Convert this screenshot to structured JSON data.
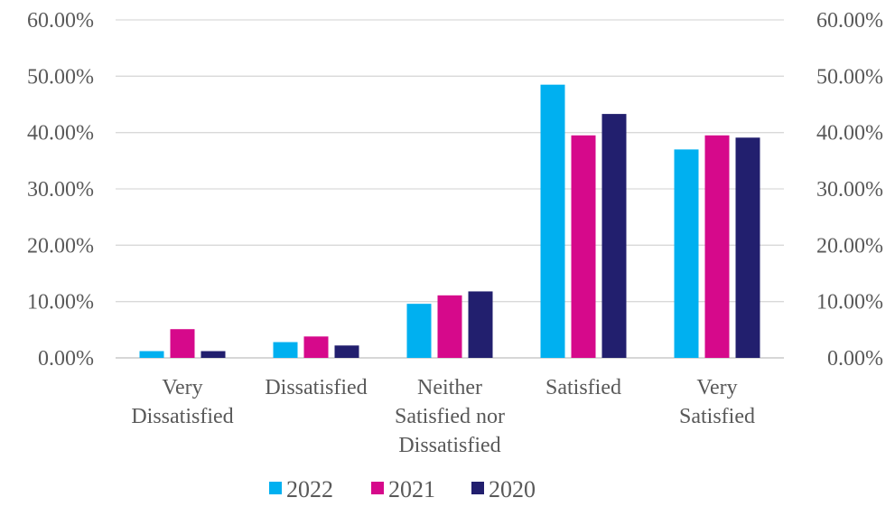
{
  "chart_data": {
    "type": "bar",
    "categories": [
      [
        "Very",
        "Dissatisfied"
      ],
      [
        "Dissatisfied"
      ],
      [
        "Neither",
        "Satisfied nor",
        "Dissatisfied"
      ],
      [
        "Satisfied"
      ],
      [
        "Very",
        "Satisfied"
      ]
    ],
    "series": [
      {
        "name": "2022",
        "color": "#00B0F0",
        "values": [
          1.2,
          2.8,
          9.6,
          48.5,
          37.0
        ]
      },
      {
        "name": "2021",
        "color": "#D6098B",
        "values": [
          5.1,
          3.8,
          11.1,
          39.5,
          39.5
        ]
      },
      {
        "name": "2020",
        "color": "#221F6E",
        "values": [
          1.2,
          2.2,
          11.8,
          43.3,
          39.1
        ]
      }
    ],
    "ylim": [
      0,
      60
    ],
    "y_ticks": [
      "0.00%",
      "10.00%",
      "20.00%",
      "30.00%",
      "40.00%",
      "50.00%",
      "60.00%"
    ],
    "secondary_y_ticks": [
      "0.00%",
      "10.00%",
      "20.00%",
      "30.00%",
      "40.00%",
      "50.00%",
      "60.00%"
    ],
    "grid": true,
    "legend_position": "bottom"
  }
}
